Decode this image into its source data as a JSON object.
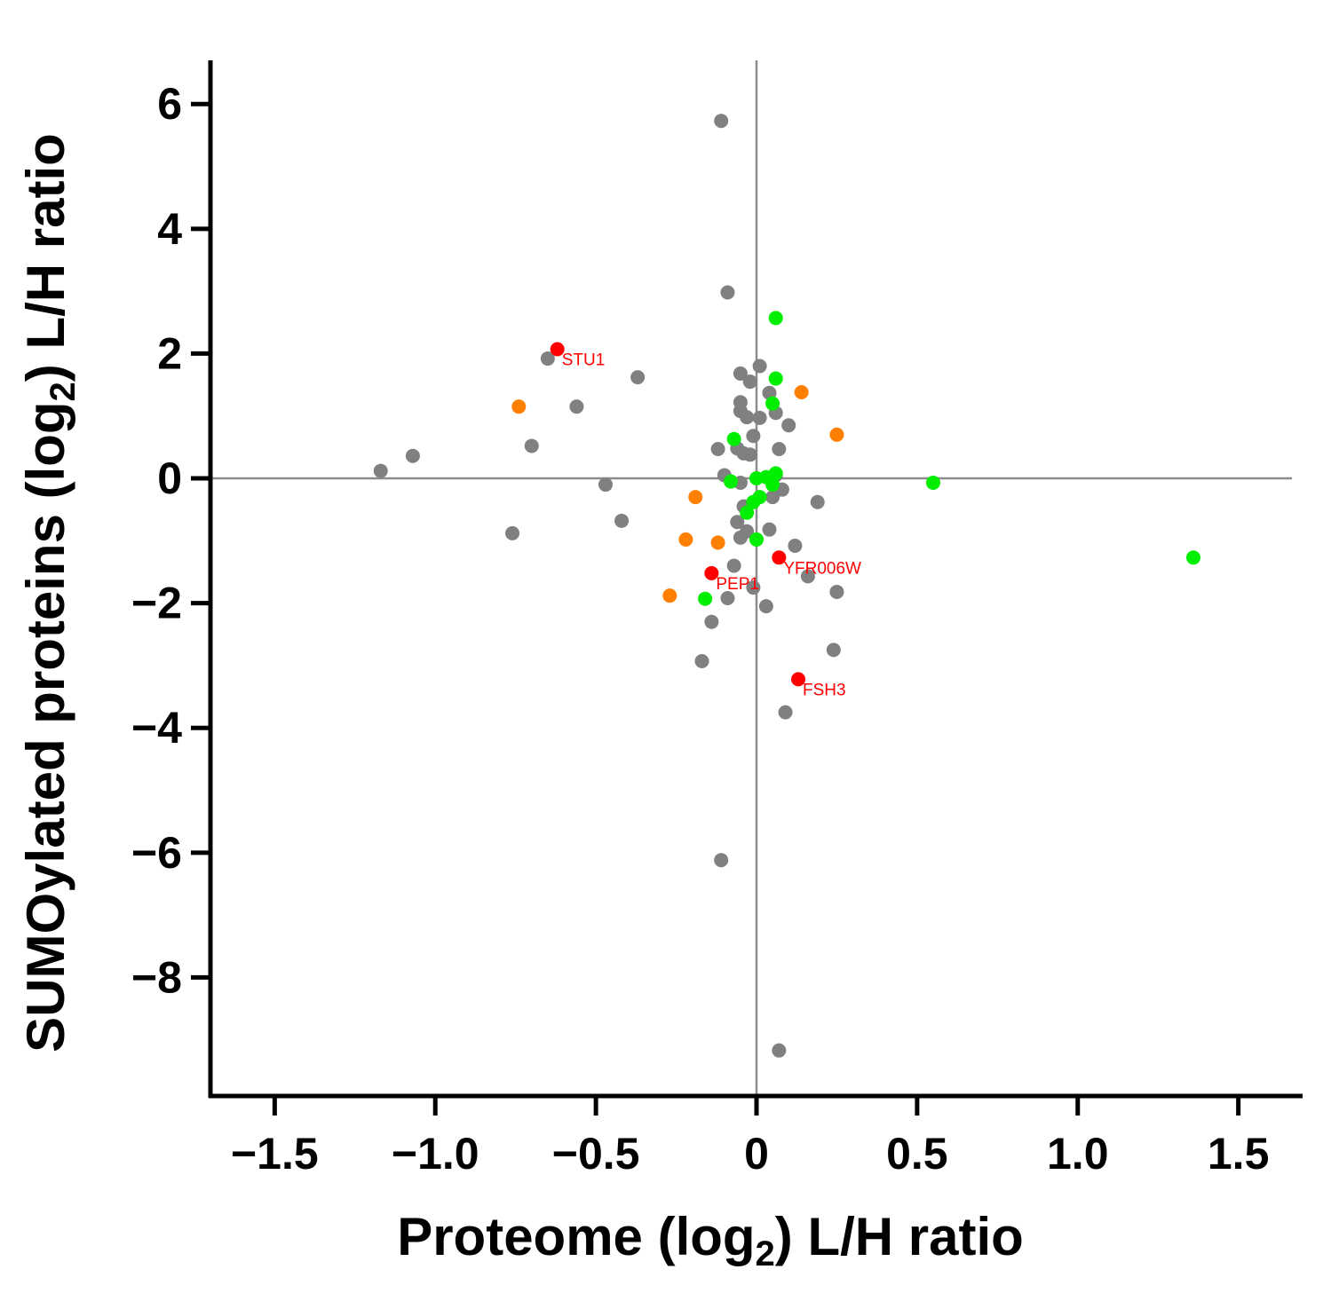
{
  "chart_data": {
    "type": "scatter",
    "title": "",
    "xlabel": {
      "prefix": "Proteome (log",
      "sub": "2",
      "suffix": ") L/H ratio"
    },
    "ylabel": {
      "prefix": "SUMOylated proteins (log",
      "sub": "2",
      "suffix": ") L/H ratio"
    },
    "xlim": [
      -1.7,
      1.7
    ],
    "ylim": [
      -9.9,
      6.7
    ],
    "x_ticks": [
      -1.5,
      -1.0,
      -0.5,
      0,
      0.5,
      1.0,
      1.5
    ],
    "x_tick_labels": [
      "−1.5",
      "−1.0",
      "−0.5",
      "0",
      "0.5",
      "1.0",
      "1.5"
    ],
    "y_ticks": [
      6,
      4,
      2,
      0,
      -2,
      -4,
      -6,
      -8
    ],
    "y_tick_labels": [
      "6",
      "4",
      "2",
      "0",
      "−2",
      "−4",
      "−6",
      "−8"
    ],
    "reference_lines": {
      "x": 0,
      "y": 0
    },
    "colors": {
      "gray": "#808080",
      "orange": "#ff8000",
      "green": "#00ee00",
      "red": "#ff0000"
    },
    "series": [
      {
        "name": "gray",
        "color": "#808080",
        "points": [
          [
            -0.11,
            5.73
          ],
          [
            -0.09,
            2.98
          ],
          [
            -0.65,
            1.92
          ],
          [
            -0.37,
            1.62
          ],
          [
            -0.56,
            1.15
          ],
          [
            -0.7,
            0.52
          ],
          [
            -1.07,
            0.36
          ],
          [
            -1.17,
            0.12
          ],
          [
            -0.47,
            -0.1
          ],
          [
            -0.42,
            -0.68
          ],
          [
            -0.76,
            -0.88
          ],
          [
            0.01,
            1.8
          ],
          [
            -0.02,
            1.55
          ],
          [
            -0.05,
            1.68
          ],
          [
            -0.05,
            1.22
          ],
          [
            -0.05,
            1.08
          ],
          [
            0.04,
            1.37
          ],
          [
            0.06,
            1.05
          ],
          [
            0.01,
            0.97
          ],
          [
            -0.03,
            0.98
          ],
          [
            0.1,
            0.85
          ],
          [
            -0.01,
            0.68
          ],
          [
            -0.06,
            0.48
          ],
          [
            0.07,
            0.47
          ],
          [
            -0.12,
            0.47
          ],
          [
            -0.04,
            0.4
          ],
          [
            -0.02,
            0.38
          ],
          [
            0.06,
            0.05
          ],
          [
            -0.1,
            0.05
          ],
          [
            -0.05,
            -0.07
          ],
          [
            0.08,
            -0.18
          ],
          [
            0.05,
            -0.3
          ],
          [
            0.19,
            -0.38
          ],
          [
            -0.04,
            -0.45
          ],
          [
            -0.06,
            -0.7
          ],
          [
            -0.03,
            -0.85
          ],
          [
            0.04,
            -0.82
          ],
          [
            -0.05,
            -0.95
          ],
          [
            0.12,
            -1.08
          ],
          [
            -0.07,
            -1.4
          ],
          [
            0.16,
            -1.57
          ],
          [
            -0.01,
            -1.75
          ],
          [
            0.25,
            -1.82
          ],
          [
            -0.09,
            -1.92
          ],
          [
            0.03,
            -2.05
          ],
          [
            -0.14,
            -2.3
          ],
          [
            -0.17,
            -2.93
          ],
          [
            0.24,
            -2.75
          ],
          [
            0.09,
            -3.75
          ],
          [
            -0.11,
            -6.12
          ],
          [
            0.07,
            -9.17
          ]
        ]
      },
      {
        "name": "orange",
        "color": "#ff8000",
        "points": [
          [
            -0.74,
            1.15
          ],
          [
            0.14,
            1.38
          ],
          [
            0.25,
            0.7
          ],
          [
            -0.19,
            -0.3
          ],
          [
            -0.22,
            -0.98
          ],
          [
            -0.12,
            -1.03
          ],
          [
            -0.27,
            -1.88
          ]
        ]
      },
      {
        "name": "green",
        "color": "#00ee00",
        "points": [
          [
            0.06,
            2.57
          ],
          [
            0.06,
            1.6
          ],
          [
            0.05,
            1.2
          ],
          [
            -0.07,
            0.63
          ],
          [
            -0.08,
            -0.05
          ],
          [
            0.06,
            0.08
          ],
          [
            0.03,
            0.02
          ],
          [
            0.0,
            0.0
          ],
          [
            0.05,
            -0.1
          ],
          [
            0.01,
            -0.3
          ],
          [
            -0.01,
            -0.38
          ],
          [
            -0.03,
            -0.55
          ],
          [
            0.0,
            -0.98
          ],
          [
            -0.16,
            -1.93
          ],
          [
            0.55,
            -0.07
          ],
          [
            1.36,
            -1.27
          ]
        ]
      },
      {
        "name": "red",
        "color": "#ff0000",
        "points": [
          [
            -0.62,
            2.07
          ],
          [
            -0.14,
            -1.52
          ],
          [
            0.07,
            -1.27
          ],
          [
            0.13,
            -3.22
          ]
        ],
        "labels": [
          "STU1",
          "PEP1",
          "YFR006W",
          "FSH3"
        ]
      }
    ]
  }
}
